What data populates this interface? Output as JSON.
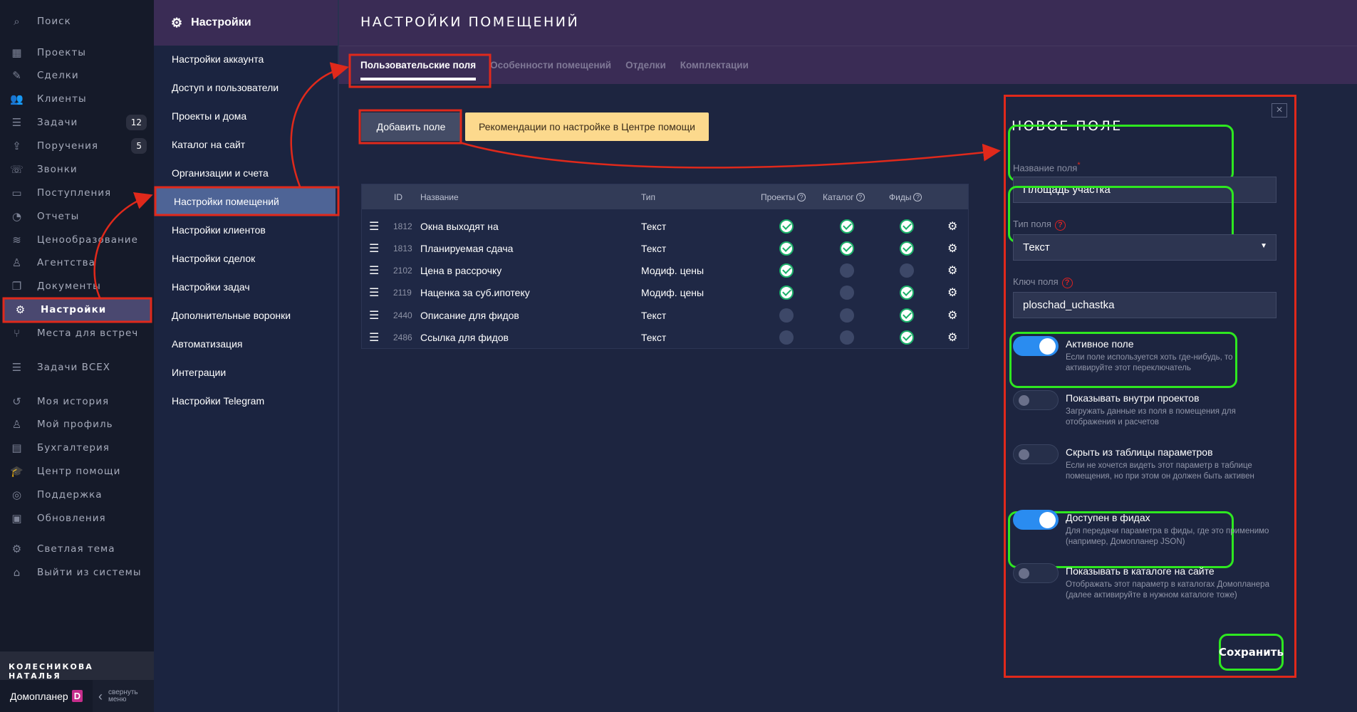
{
  "sidebar": {
    "items": [
      {
        "label": "Поиск",
        "icon": "search-icon",
        "glyph": "⌕"
      },
      {
        "label": "Проекты",
        "icon": "building-icon",
        "glyph": "▦"
      },
      {
        "label": "Сделки",
        "icon": "deals-icon",
        "glyph": "✎"
      },
      {
        "label": "Клиенты",
        "icon": "users-icon",
        "glyph": "👥"
      },
      {
        "label": "Задачи",
        "icon": "tasks-icon",
        "glyph": "☰",
        "badge": "12"
      },
      {
        "label": "Поручения",
        "icon": "upload-icon",
        "glyph": "⇪",
        "badge": "5"
      },
      {
        "label": "Звонки",
        "icon": "headset-icon",
        "glyph": "☏"
      },
      {
        "label": "Поступления",
        "icon": "wallet-icon",
        "glyph": "▭"
      },
      {
        "label": "Отчеты",
        "icon": "pie-chart-icon",
        "glyph": "◔"
      },
      {
        "label": "Ценообразование",
        "icon": "coins-icon",
        "glyph": "≋"
      },
      {
        "label": "Агентства",
        "icon": "agent-icon",
        "glyph": "♙"
      },
      {
        "label": "Документы",
        "icon": "documents-icon",
        "glyph": "❐"
      },
      {
        "label": "Настройки",
        "icon": "gear-icon",
        "glyph": "⚙",
        "active": true
      },
      {
        "label": "Места для встреч",
        "icon": "chair-icon",
        "glyph": "⑂"
      },
      {
        "label": "Задачи ВСЕХ",
        "icon": "tasks-all-icon",
        "glyph": "☰"
      },
      {
        "label": "Моя история",
        "icon": "history-icon",
        "glyph": "↺"
      },
      {
        "label": "Мой профиль",
        "icon": "profile-icon",
        "glyph": "♙"
      },
      {
        "label": "Бухгалтерия",
        "icon": "card-icon",
        "glyph": "▤"
      },
      {
        "label": "Центр помощи",
        "icon": "graduation-icon",
        "glyph": "🎓"
      },
      {
        "label": "Поддержка",
        "icon": "lifebuoy-icon",
        "glyph": "◎"
      },
      {
        "label": "Обновления",
        "icon": "news-icon",
        "glyph": "▣"
      },
      {
        "label": "Светлая тема",
        "icon": "theme-gear-icon",
        "glyph": "⚙"
      },
      {
        "label": "Выйти из системы",
        "icon": "exit-door-icon",
        "glyph": "⌂"
      }
    ],
    "user": "КОЛЕСНИКОВА НАТАЛЬЯ",
    "brand": "Домопланер",
    "logo": "D",
    "collapse1": "свернуть",
    "collapse2": "меню"
  },
  "settings": {
    "title": "Настройки",
    "items": [
      "Настройки аккаунта",
      "Доступ и пользователи",
      "Проекты и дома",
      "Каталог на сайт",
      "Организации и счета",
      "Настройки помещений",
      "Настройки клиентов",
      "Настройки сделок",
      "Настройки задач",
      "Дополнительные воронки",
      "Автоматизация",
      "Интеграции",
      "Настройки Telegram"
    ],
    "active": 5
  },
  "main": {
    "title": "НАСТРОЙКИ ПОМЕЩЕНИЙ",
    "tabs": [
      "Пользовательские поля",
      "Особенности помещений",
      "Отделки",
      "Комплектации"
    ],
    "add_button": "Добавить поле",
    "help_button": "Рекомендации по настройке в Центре помощи",
    "table": {
      "headers": {
        "id": "ID",
        "name": "Название",
        "type": "Тип",
        "projects": "Проекты",
        "catalog": "Каталог",
        "feeds": "Фиды",
        "q": "?"
      },
      "rows": [
        {
          "id": "1812",
          "name": "Окна выходят на",
          "type": "Текст",
          "projects": true,
          "catalog": true,
          "feeds": true
        },
        {
          "id": "1813",
          "name": "Планируемая сдача",
          "type": "Текст",
          "projects": true,
          "catalog": true,
          "feeds": true
        },
        {
          "id": "2102",
          "name": "Цена в рассрочку",
          "type": "Модиф. цены",
          "projects": true,
          "catalog": false,
          "feeds": false
        },
        {
          "id": "2119",
          "name": "Наценка за суб.ипотеку",
          "type": "Модиф. цены",
          "projects": true,
          "catalog": false,
          "feeds": true
        },
        {
          "id": "2440",
          "name": "Описание для фидов",
          "type": "Текст",
          "projects": false,
          "catalog": false,
          "feeds": true
        },
        {
          "id": "2486",
          "name": "Ссылка для фидов",
          "type": "Текст",
          "projects": false,
          "catalog": false,
          "feeds": true
        }
      ]
    }
  },
  "modal": {
    "title": "НОВОЕ ПОЛЕ",
    "close": "×",
    "name_label": "Название поля",
    "required": "*",
    "name_value": "Площадь участка",
    "type_label": "Тип поля",
    "type_value": "Текст",
    "q": "?",
    "key_label": "Ключ поля",
    "key_value": "ploschad_uchastka",
    "toggles": [
      {
        "title": "Активное поле",
        "desc": "Если поле используется хоть где-нибудь, то активируйте этот переключатель",
        "on": true
      },
      {
        "title": "Показывать внутри проектов",
        "desc": "Загружать данные из поля в помещения для отображения и расчетов",
        "on": false
      },
      {
        "title": "Скрыть из таблицы параметров",
        "desc": "Если не хочется видеть этот параметр в таблице помещения, но при этом он должен быть активен",
        "on": false
      },
      {
        "title": "Доступен в фидах",
        "desc": "Для передачи параметра в фиды, где это применимо (например, Домопланер JSON)",
        "on": true
      },
      {
        "title": "Показывать в каталоге на сайте",
        "desc": "Отображать этот параметр в каталогах Домопланера (далее активируйте в нужном каталоге тоже)",
        "on": false
      }
    ],
    "save": "Сохранить"
  },
  "colors": {
    "highlight": "#e0291b",
    "green": "#2ee820",
    "accent": "#2a8cf0"
  }
}
